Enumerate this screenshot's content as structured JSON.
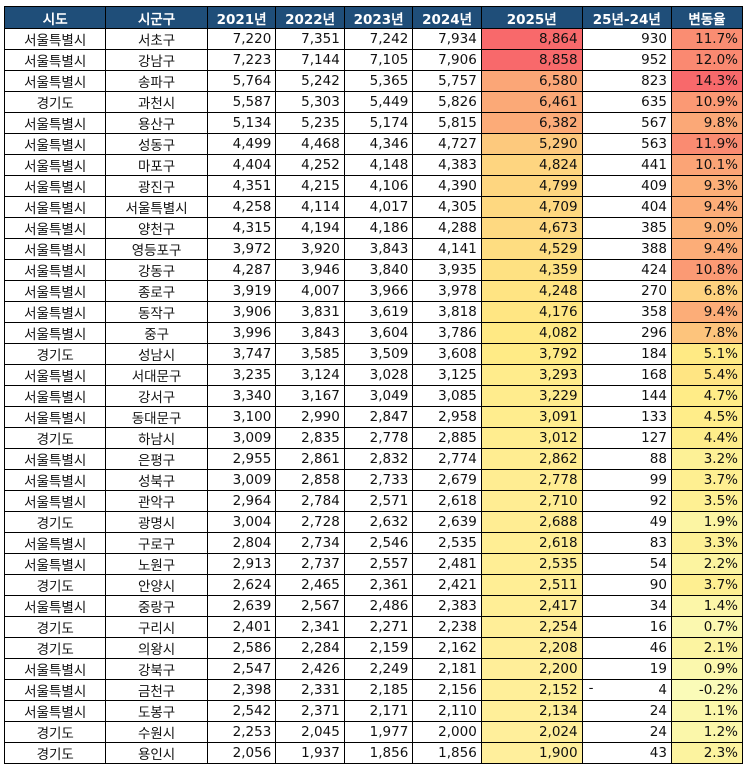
{
  "headers": [
    "시도",
    "시군구",
    "2021년",
    "2022년",
    "2023년",
    "2024년",
    "2025년",
    "25년-24년",
    "변동율"
  ],
  "rows": [
    {
      "sido": "서울특별시",
      "sigungu": "서초구",
      "y2021": "7,220",
      "y2022": "7,351",
      "y2023": "7,242",
      "y2024": "7,934",
      "y2025": "8,864",
      "diff": "930",
      "rate": "11.7%",
      "v2025": 8864,
      "vrate": 11.7
    },
    {
      "sido": "서울특별시",
      "sigungu": "강남구",
      "y2021": "7,223",
      "y2022": "7,144",
      "y2023": "7,105",
      "y2024": "7,906",
      "y2025": "8,858",
      "diff": "952",
      "rate": "12.0%",
      "v2025": 8858,
      "vrate": 12.0
    },
    {
      "sido": "서울특별시",
      "sigungu": "송파구",
      "y2021": "5,764",
      "y2022": "5,242",
      "y2023": "5,365",
      "y2024": "5,757",
      "y2025": "6,580",
      "diff": "823",
      "rate": "14.3%",
      "v2025": 6580,
      "vrate": 14.3
    },
    {
      "sido": "경기도",
      "sigungu": "과천시",
      "y2021": "5,587",
      "y2022": "5,303",
      "y2023": "5,449",
      "y2024": "5,826",
      "y2025": "6,461",
      "diff": "635",
      "rate": "10.9%",
      "v2025": 6461,
      "vrate": 10.9
    },
    {
      "sido": "서울특별시",
      "sigungu": "용산구",
      "y2021": "5,134",
      "y2022": "5,235",
      "y2023": "5,174",
      "y2024": "5,815",
      "y2025": "6,382",
      "diff": "567",
      "rate": "9.8%",
      "v2025": 6382,
      "vrate": 9.8
    },
    {
      "sido": "서울특별시",
      "sigungu": "성동구",
      "y2021": "4,499",
      "y2022": "4,468",
      "y2023": "4,346",
      "y2024": "4,727",
      "y2025": "5,290",
      "diff": "563",
      "rate": "11.9%",
      "v2025": 5290,
      "vrate": 11.9
    },
    {
      "sido": "서울특별시",
      "sigungu": "마포구",
      "y2021": "4,404",
      "y2022": "4,252",
      "y2023": "4,148",
      "y2024": "4,383",
      "y2025": "4,824",
      "diff": "441",
      "rate": "10.1%",
      "v2025": 4824,
      "vrate": 10.1
    },
    {
      "sido": "서울특별시",
      "sigungu": "광진구",
      "y2021": "4,351",
      "y2022": "4,215",
      "y2023": "4,106",
      "y2024": "4,390",
      "y2025": "4,799",
      "diff": "409",
      "rate": "9.3%",
      "v2025": 4799,
      "vrate": 9.3
    },
    {
      "sido": "서울특별시",
      "sigungu": "서울특별시",
      "y2021": "4,258",
      "y2022": "4,114",
      "y2023": "4,017",
      "y2024": "4,305",
      "y2025": "4,709",
      "diff": "404",
      "rate": "9.4%",
      "v2025": 4709,
      "vrate": 9.4
    },
    {
      "sido": "서울특별시",
      "sigungu": "양천구",
      "y2021": "4,315",
      "y2022": "4,194",
      "y2023": "4,186",
      "y2024": "4,288",
      "y2025": "4,673",
      "diff": "385",
      "rate": "9.0%",
      "v2025": 4673,
      "vrate": 9.0
    },
    {
      "sido": "서울특별시",
      "sigungu": "영등포구",
      "y2021": "3,972",
      "y2022": "3,920",
      "y2023": "3,843",
      "y2024": "4,141",
      "y2025": "4,529",
      "diff": "388",
      "rate": "9.4%",
      "v2025": 4529,
      "vrate": 9.4
    },
    {
      "sido": "서울특별시",
      "sigungu": "강동구",
      "y2021": "4,287",
      "y2022": "3,946",
      "y2023": "3,840",
      "y2024": "3,935",
      "y2025": "4,359",
      "diff": "424",
      "rate": "10.8%",
      "v2025": 4359,
      "vrate": 10.8
    },
    {
      "sido": "서울특별시",
      "sigungu": "종로구",
      "y2021": "3,919",
      "y2022": "4,007",
      "y2023": "3,966",
      "y2024": "3,978",
      "y2025": "4,248",
      "diff": "270",
      "rate": "6.8%",
      "v2025": 4248,
      "vrate": 6.8
    },
    {
      "sido": "서울특별시",
      "sigungu": "동작구",
      "y2021": "3,906",
      "y2022": "3,831",
      "y2023": "3,619",
      "y2024": "3,818",
      "y2025": "4,176",
      "diff": "358",
      "rate": "9.4%",
      "v2025": 4176,
      "vrate": 9.4
    },
    {
      "sido": "서울특별시",
      "sigungu": "중구",
      "y2021": "3,996",
      "y2022": "3,843",
      "y2023": "3,604",
      "y2024": "3,786",
      "y2025": "4,082",
      "diff": "296",
      "rate": "7.8%",
      "v2025": 4082,
      "vrate": 7.8
    },
    {
      "sido": "경기도",
      "sigungu": "성남시",
      "y2021": "3,747",
      "y2022": "3,585",
      "y2023": "3,509",
      "y2024": "3,608",
      "y2025": "3,792",
      "diff": "184",
      "rate": "5.1%",
      "v2025": 3792,
      "vrate": 5.1
    },
    {
      "sido": "서울특별시",
      "sigungu": "서대문구",
      "y2021": "3,235",
      "y2022": "3,124",
      "y2023": "3,028",
      "y2024": "3,125",
      "y2025": "3,293",
      "diff": "168",
      "rate": "5.4%",
      "v2025": 3293,
      "vrate": 5.4
    },
    {
      "sido": "서울특별시",
      "sigungu": "강서구",
      "y2021": "3,340",
      "y2022": "3,167",
      "y2023": "3,049",
      "y2024": "3,085",
      "y2025": "3,229",
      "diff": "144",
      "rate": "4.7%",
      "v2025": 3229,
      "vrate": 4.7
    },
    {
      "sido": "서울특별시",
      "sigungu": "동대문구",
      "y2021": "3,100",
      "y2022": "2,990",
      "y2023": "2,847",
      "y2024": "2,958",
      "y2025": "3,091",
      "diff": "133",
      "rate": "4.5%",
      "v2025": 3091,
      "vrate": 4.5
    },
    {
      "sido": "경기도",
      "sigungu": "하남시",
      "y2021": "3,009",
      "y2022": "2,835",
      "y2023": "2,778",
      "y2024": "2,885",
      "y2025": "3,012",
      "diff": "127",
      "rate": "4.4%",
      "v2025": 3012,
      "vrate": 4.4
    },
    {
      "sido": "서울특별시",
      "sigungu": "은평구",
      "y2021": "2,955",
      "y2022": "2,861",
      "y2023": "2,832",
      "y2024": "2,774",
      "y2025": "2,862",
      "diff": "88",
      "rate": "3.2%",
      "v2025": 2862,
      "vrate": 3.2
    },
    {
      "sido": "서울특별시",
      "sigungu": "성북구",
      "y2021": "3,009",
      "y2022": "2,858",
      "y2023": "2,733",
      "y2024": "2,679",
      "y2025": "2,778",
      "diff": "99",
      "rate": "3.7%",
      "v2025": 2778,
      "vrate": 3.7
    },
    {
      "sido": "서울특별시",
      "sigungu": "관악구",
      "y2021": "2,964",
      "y2022": "2,784",
      "y2023": "2,571",
      "y2024": "2,618",
      "y2025": "2,710",
      "diff": "92",
      "rate": "3.5%",
      "v2025": 2710,
      "vrate": 3.5
    },
    {
      "sido": "경기도",
      "sigungu": "광명시",
      "y2021": "3,004",
      "y2022": "2,728",
      "y2023": "2,632",
      "y2024": "2,639",
      "y2025": "2,688",
      "diff": "49",
      "rate": "1.9%",
      "v2025": 2688,
      "vrate": 1.9
    },
    {
      "sido": "서울특별시",
      "sigungu": "구로구",
      "y2021": "2,804",
      "y2022": "2,734",
      "y2023": "2,546",
      "y2024": "2,535",
      "y2025": "2,618",
      "diff": "83",
      "rate": "3.3%",
      "v2025": 2618,
      "vrate": 3.3
    },
    {
      "sido": "서울특별시",
      "sigungu": "노원구",
      "y2021": "2,913",
      "y2022": "2,737",
      "y2023": "2,557",
      "y2024": "2,481",
      "y2025": "2,535",
      "diff": "54",
      "rate": "2.2%",
      "v2025": 2535,
      "vrate": 2.2
    },
    {
      "sido": "경기도",
      "sigungu": "안양시",
      "y2021": "2,624",
      "y2022": "2,465",
      "y2023": "2,361",
      "y2024": "2,421",
      "y2025": "2,511",
      "diff": "90",
      "rate": "3.7%",
      "v2025": 2511,
      "vrate": 3.7
    },
    {
      "sido": "서울특별시",
      "sigungu": "중랑구",
      "y2021": "2,639",
      "y2022": "2,567",
      "y2023": "2,486",
      "y2024": "2,383",
      "y2025": "2,417",
      "diff": "34",
      "rate": "1.4%",
      "v2025": 2417,
      "vrate": 1.4
    },
    {
      "sido": "경기도",
      "sigungu": "구리시",
      "y2021": "2,401",
      "y2022": "2,341",
      "y2023": "2,271",
      "y2024": "2,238",
      "y2025": "2,254",
      "diff": "16",
      "rate": "0.7%",
      "v2025": 2254,
      "vrate": 0.7
    },
    {
      "sido": "경기도",
      "sigungu": "의왕시",
      "y2021": "2,586",
      "y2022": "2,284",
      "y2023": "2,159",
      "y2024": "2,162",
      "y2025": "2,208",
      "diff": "46",
      "rate": "2.1%",
      "v2025": 2208,
      "vrate": 2.1
    },
    {
      "sido": "서울특별시",
      "sigungu": "강북구",
      "y2021": "2,547",
      "y2022": "2,426",
      "y2023": "2,249",
      "y2024": "2,181",
      "y2025": "2,200",
      "diff": "19",
      "rate": "0.9%",
      "v2025": 2200,
      "vrate": 0.9
    },
    {
      "sido": "서울특별시",
      "sigungu": "금천구",
      "y2021": "2,398",
      "y2022": "2,331",
      "y2023": "2,185",
      "y2024": "2,156",
      "y2025": "2,152",
      "diff": "4",
      "diff_prefix": "-",
      "rate": "-0.2%",
      "v2025": 2152,
      "vrate": -0.2
    },
    {
      "sido": "서울특별시",
      "sigungu": "도봉구",
      "y2021": "2,542",
      "y2022": "2,371",
      "y2023": "2,171",
      "y2024": "2,110",
      "y2025": "2,134",
      "diff": "24",
      "rate": "1.1%",
      "v2025": 2134,
      "vrate": 1.1
    },
    {
      "sido": "경기도",
      "sigungu": "수원시",
      "y2021": "2,253",
      "y2022": "2,045",
      "y2023": "1,977",
      "y2024": "2,000",
      "y2025": "2,024",
      "diff": "24",
      "rate": "1.2%",
      "v2025": 2024,
      "vrate": 1.2
    },
    {
      "sido": "경기도",
      "sigungu": "용인시",
      "y2021": "2,056",
      "y2022": "1,937",
      "y2023": "1,856",
      "y2024": "1,856",
      "y2025": "1,900",
      "diff": "43",
      "rate": "2.3%",
      "v2025": 1900,
      "vrate": 2.3
    }
  ],
  "colors": {
    "header_bg": "#1f4e79",
    "header_text": "#ffffff",
    "scale_high": "#f8696b",
    "scale_mid": "#ffeb84",
    "scale_low": "#ffef9c",
    "scale_rate_low": "#fafbb8"
  }
}
